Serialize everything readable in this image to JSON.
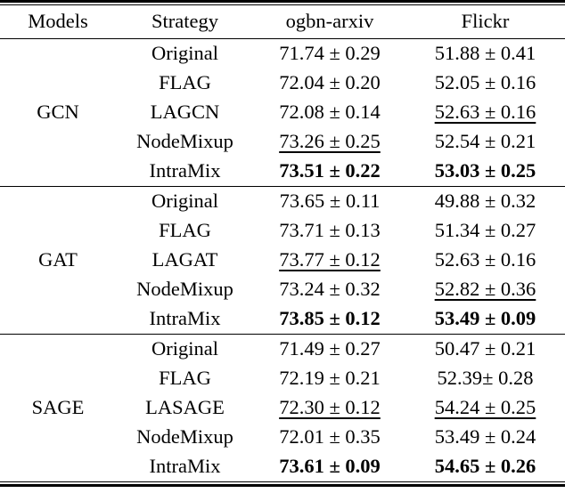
{
  "table": {
    "columns": {
      "models": "Models",
      "strategy": "Strategy",
      "ogbn_arxiv": "ogbn-arxiv",
      "flickr": "Flickr"
    },
    "text_color": "#000000",
    "background_color": "#ffffff",
    "groups": [
      {
        "model": "GCN",
        "rows": [
          {
            "strategy": "Original",
            "ogbn_arxiv": "71.74 ± 0.29",
            "flickr": "51.88 ± 0.41",
            "ogbn_arxiv_style": "",
            "flickr_style": ""
          },
          {
            "strategy": "FLAG",
            "ogbn_arxiv": "72.04 ± 0.20",
            "flickr": "52.05 ± 0.16",
            "ogbn_arxiv_style": "",
            "flickr_style": ""
          },
          {
            "strategy": "LAGCN",
            "ogbn_arxiv": "72.08 ± 0.14",
            "flickr": "52.63 ± 0.16",
            "ogbn_arxiv_style": "",
            "flickr_style": "underline"
          },
          {
            "strategy": "NodeMixup",
            "ogbn_arxiv": "73.26 ± 0.25",
            "flickr": "52.54 ± 0.21",
            "ogbn_arxiv_style": "underline",
            "flickr_style": ""
          },
          {
            "strategy": "IntraMix",
            "ogbn_arxiv": "73.51 ± 0.22",
            "flickr": "53.03 ± 0.25",
            "ogbn_arxiv_style": "bold",
            "flickr_style": "bold"
          }
        ]
      },
      {
        "model": "GAT",
        "rows": [
          {
            "strategy": "Original",
            "ogbn_arxiv": "73.65 ± 0.11",
            "flickr": "49.88 ± 0.32",
            "ogbn_arxiv_style": "",
            "flickr_style": ""
          },
          {
            "strategy": "FLAG",
            "ogbn_arxiv": "73.71 ± 0.13",
            "flickr": "51.34 ± 0.27",
            "ogbn_arxiv_style": "",
            "flickr_style": ""
          },
          {
            "strategy": "LAGAT",
            "ogbn_arxiv": "73.77 ± 0.12",
            "flickr": "52.63 ± 0.16",
            "ogbn_arxiv_style": "underline",
            "flickr_style": ""
          },
          {
            "strategy": "NodeMixup",
            "ogbn_arxiv": "73.24 ± 0.32",
            "flickr": "52.82 ± 0.36",
            "ogbn_arxiv_style": "",
            "flickr_style": "underline"
          },
          {
            "strategy": "IntraMix",
            "ogbn_arxiv": "73.85 ± 0.12",
            "flickr": "53.49 ± 0.09",
            "ogbn_arxiv_style": "bold",
            "flickr_style": "bold"
          }
        ]
      },
      {
        "model": "SAGE",
        "rows": [
          {
            "strategy": "Original",
            "ogbn_arxiv": "71.49 ± 0.27",
            "flickr": "50.47 ± 0.21",
            "ogbn_arxiv_style": "",
            "flickr_style": ""
          },
          {
            "strategy": "FLAG",
            "ogbn_arxiv": "72.19 ± 0.21",
            "flickr": "52.39± 0.28",
            "ogbn_arxiv_style": "",
            "flickr_style": ""
          },
          {
            "strategy": "LASAGE",
            "ogbn_arxiv": "72.30 ± 0.12",
            "flickr": "54.24 ± 0.25",
            "ogbn_arxiv_style": "underline",
            "flickr_style": "underline"
          },
          {
            "strategy": "NodeMixup",
            "ogbn_arxiv": "72.01 ± 0.35",
            "flickr": "53.49 ± 0.24",
            "ogbn_arxiv_style": "",
            "flickr_style": ""
          },
          {
            "strategy": "IntraMix",
            "ogbn_arxiv": "73.61 ± 0.09",
            "flickr": "54.65 ± 0.26",
            "ogbn_arxiv_style": "bold",
            "flickr_style": "bold"
          }
        ]
      }
    ]
  }
}
